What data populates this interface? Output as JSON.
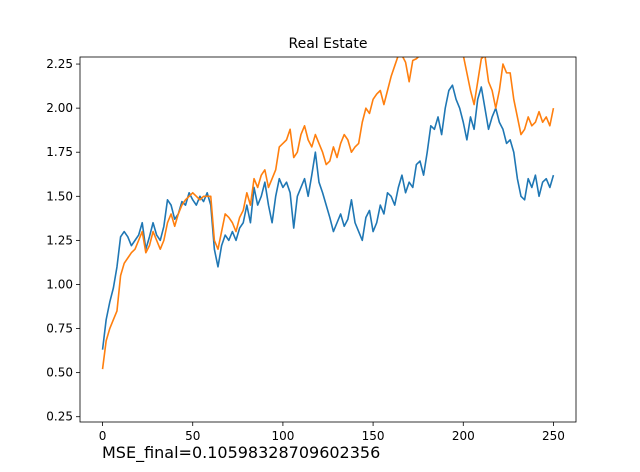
{
  "chart_data": {
    "type": "line",
    "title": "Real Estate",
    "xlabel": "",
    "ylabel": "",
    "xlim": [
      -12.5,
      262.5
    ],
    "ylim": [
      0.22,
      2.29
    ],
    "xticks": [
      0,
      50,
      100,
      150,
      200,
      250
    ],
    "yticks": [
      0.25,
      0.5,
      0.75,
      1.0,
      1.25,
      1.5,
      1.75,
      2.0,
      2.25
    ],
    "ytick_labels": [
      "0.25",
      "0.50",
      "0.75",
      "1.00",
      "1.25",
      "1.50",
      "1.75",
      "2.00",
      "2.25"
    ],
    "grid": false,
    "legend": "none",
    "series": [
      {
        "color": "#1f77b4",
        "x": [
          0,
          2,
          4,
          6,
          8,
          10,
          12,
          14,
          16,
          18,
          20,
          22,
          24,
          26,
          28,
          30,
          32,
          34,
          36,
          38,
          40,
          42,
          44,
          46,
          48,
          50,
          52,
          54,
          56,
          58,
          60,
          62,
          64,
          66,
          68,
          70,
          72,
          74,
          76,
          78,
          80,
          82,
          84,
          86,
          88,
          90,
          92,
          94,
          96,
          98,
          100,
          102,
          104,
          106,
          108,
          110,
          112,
          114,
          116,
          118,
          120,
          122,
          124,
          126,
          128,
          130,
          132,
          134,
          136,
          138,
          140,
          142,
          144,
          146,
          148,
          150,
          152,
          154,
          156,
          158,
          160,
          162,
          164,
          166,
          168,
          170,
          172,
          174,
          176,
          178,
          180,
          182,
          184,
          186,
          188,
          190,
          192,
          194,
          196,
          198,
          200,
          202,
          204,
          206,
          208,
          210,
          212,
          214,
          216,
          218,
          220,
          222,
          224,
          226,
          228,
          230,
          232,
          234,
          236,
          238,
          240,
          242,
          244,
          246,
          248,
          250
        ],
        "y": [
          0.63,
          0.8,
          0.9,
          0.98,
          1.1,
          1.27,
          1.3,
          1.27,
          1.22,
          1.25,
          1.28,
          1.35,
          1.2,
          1.27,
          1.35,
          1.28,
          1.25,
          1.33,
          1.48,
          1.45,
          1.37,
          1.4,
          1.47,
          1.45,
          1.52,
          1.48,
          1.45,
          1.5,
          1.47,
          1.52,
          1.45,
          1.2,
          1.1,
          1.22,
          1.28,
          1.25,
          1.3,
          1.25,
          1.32,
          1.35,
          1.45,
          1.35,
          1.55,
          1.45,
          1.5,
          1.58,
          1.45,
          1.35,
          1.5,
          1.6,
          1.55,
          1.58,
          1.52,
          1.32,
          1.5,
          1.55,
          1.6,
          1.5,
          1.62,
          1.75,
          1.58,
          1.52,
          1.45,
          1.38,
          1.3,
          1.35,
          1.4,
          1.33,
          1.37,
          1.48,
          1.35,
          1.3,
          1.25,
          1.38,
          1.42,
          1.3,
          1.35,
          1.45,
          1.4,
          1.52,
          1.5,
          1.45,
          1.55,
          1.62,
          1.52,
          1.58,
          1.55,
          1.68,
          1.7,
          1.62,
          1.75,
          1.9,
          1.88,
          1.95,
          1.85,
          2.0,
          2.1,
          2.13,
          2.05,
          2.0,
          1.92,
          1.82,
          1.95,
          1.88,
          2.05,
          2.12,
          2.0,
          1.88,
          1.95,
          2.0,
          1.92,
          1.88,
          1.8,
          1.82,
          1.75,
          1.6,
          1.5,
          1.48,
          1.6,
          1.55,
          1.62,
          1.5,
          1.58,
          1.6,
          1.55,
          1.62
        ]
      },
      {
        "color": "#ff7f0e",
        "x": [
          0,
          2,
          4,
          6,
          8,
          10,
          12,
          14,
          16,
          18,
          20,
          22,
          24,
          26,
          28,
          30,
          32,
          34,
          36,
          38,
          40,
          42,
          44,
          46,
          48,
          50,
          52,
          54,
          56,
          58,
          60,
          62,
          64,
          66,
          68,
          70,
          72,
          74,
          76,
          78,
          80,
          82,
          84,
          86,
          88,
          90,
          92,
          94,
          96,
          98,
          100,
          102,
          104,
          106,
          108,
          110,
          112,
          114,
          116,
          118,
          120,
          122,
          124,
          126,
          128,
          130,
          132,
          134,
          136,
          138,
          140,
          142,
          144,
          146,
          148,
          150,
          152,
          154,
          156,
          158,
          160,
          162,
          164,
          166,
          168,
          170,
          172,
          174,
          176,
          178,
          180,
          182,
          184,
          186,
          188,
          190,
          192,
          194,
          196,
          198,
          200,
          202,
          204,
          206,
          208,
          210,
          212,
          214,
          216,
          218,
          220,
          222,
          224,
          226,
          228,
          230,
          232,
          234,
          236,
          238,
          240,
          242,
          244,
          246,
          248,
          250
        ],
        "y": [
          0.52,
          0.68,
          0.75,
          0.8,
          0.85,
          1.05,
          1.12,
          1.15,
          1.18,
          1.2,
          1.25,
          1.3,
          1.18,
          1.22,
          1.3,
          1.25,
          1.2,
          1.25,
          1.35,
          1.4,
          1.33,
          1.4,
          1.45,
          1.48,
          1.5,
          1.52,
          1.5,
          1.48,
          1.5,
          1.5,
          1.5,
          1.25,
          1.2,
          1.3,
          1.4,
          1.38,
          1.35,
          1.3,
          1.38,
          1.42,
          1.52,
          1.45,
          1.6,
          1.55,
          1.62,
          1.65,
          1.55,
          1.6,
          1.65,
          1.78,
          1.8,
          1.82,
          1.88,
          1.72,
          1.75,
          1.85,
          1.9,
          1.82,
          1.78,
          1.85,
          1.8,
          1.75,
          1.68,
          1.7,
          1.78,
          1.72,
          1.8,
          1.85,
          1.82,
          1.75,
          1.78,
          1.8,
          1.92,
          2.0,
          1.97,
          2.05,
          2.08,
          2.1,
          2.02,
          2.1,
          2.18,
          2.24,
          2.3,
          2.3,
          2.26,
          2.15,
          2.27,
          2.28,
          2.3,
          2.3,
          2.3,
          2.3,
          2.3,
          2.3,
          2.3,
          2.3,
          2.3,
          2.3,
          2.3,
          2.3,
          2.3,
          2.2,
          2.1,
          2.02,
          2.15,
          2.28,
          2.3,
          2.15,
          2.1,
          2.0,
          2.1,
          2.25,
          2.2,
          2.2,
          2.05,
          1.95,
          1.85,
          1.88,
          1.95,
          1.9,
          1.92,
          1.98,
          1.92,
          1.95,
          1.9,
          2.0
        ]
      }
    ]
  },
  "footer": {
    "text": "MSE_final=0.10598328709602356"
  }
}
